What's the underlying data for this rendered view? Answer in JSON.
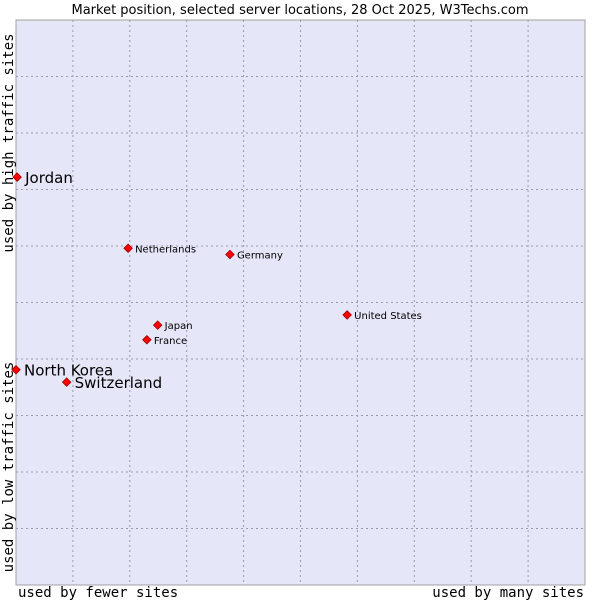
{
  "chart_data": {
    "type": "scatter",
    "title": "Market position, selected server locations, 28 Oct 2025, W3Techs.com",
    "xlabel_left": "used by fewer sites",
    "xlabel_right": "used by many sites",
    "ylabel_bottom": "used by low traffic sites",
    "ylabel_top": "used by high traffic sites",
    "xlim": [
      0,
      100
    ],
    "ylim": [
      0,
      100
    ],
    "grid": true,
    "point_color": "#ff0000",
    "plot_background": "#e6e6f9",
    "points": [
      {
        "label": "Jordan",
        "x": 0.2,
        "y": 72.2,
        "emphasis": true
      },
      {
        "label": "Netherlands",
        "x": 19.7,
        "y": 59.6,
        "emphasis": false
      },
      {
        "label": "Germany",
        "x": 37.6,
        "y": 58.5,
        "emphasis": false
      },
      {
        "label": "United States",
        "x": 58.2,
        "y": 47.8,
        "emphasis": false
      },
      {
        "label": "Japan",
        "x": 24.9,
        "y": 46.0,
        "emphasis": false
      },
      {
        "label": "France",
        "x": 23.0,
        "y": 43.4,
        "emphasis": false
      },
      {
        "label": "North Korea",
        "x": 0.0,
        "y": 38.1,
        "emphasis": true
      },
      {
        "label": "Switzerland",
        "x": 8.9,
        "y": 35.9,
        "emphasis": true
      }
    ]
  }
}
